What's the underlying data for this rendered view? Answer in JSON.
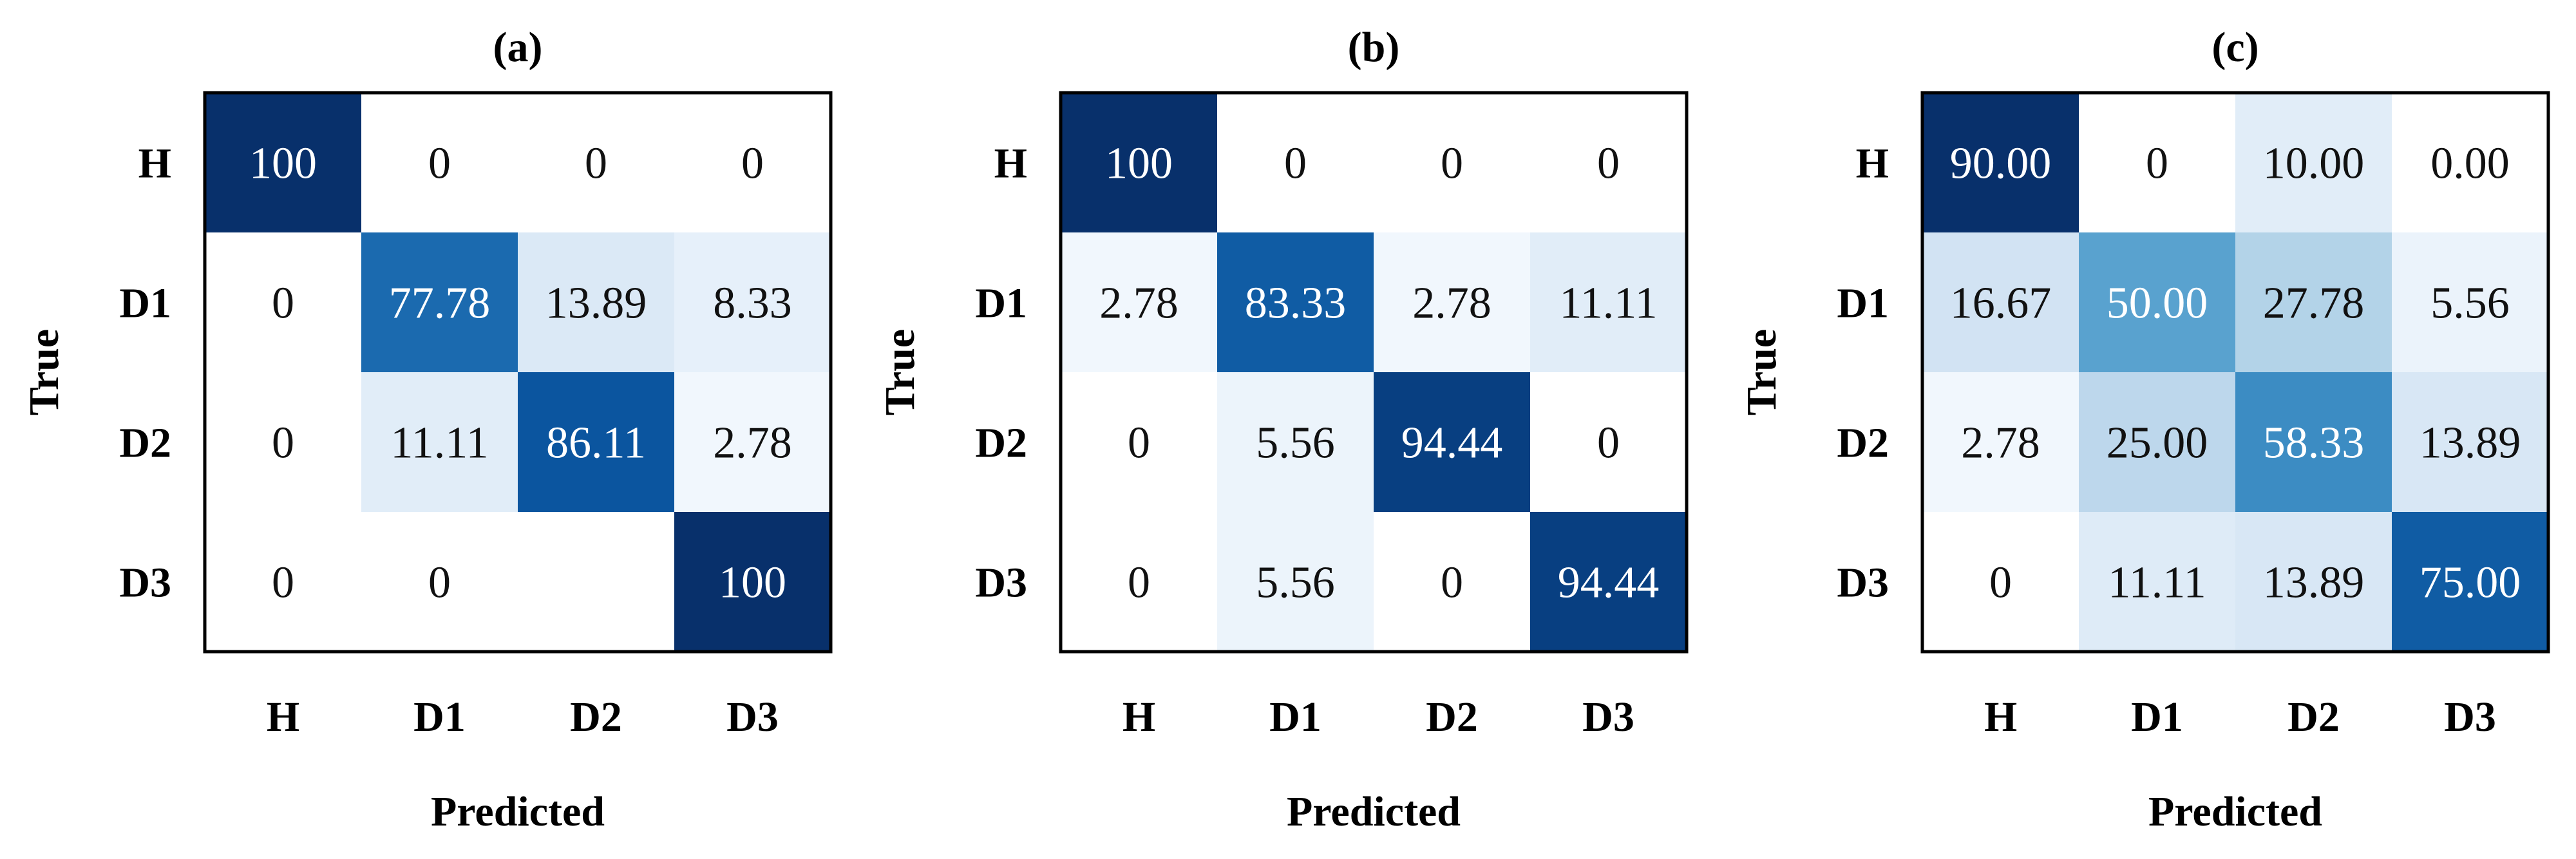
{
  "colors": {
    "low": "#f7fbff",
    "high": "#08306b",
    "frame": "#000000"
  },
  "chart_data": [
    {
      "type": "heatmap",
      "title": "(a)",
      "xlabel": "Predicted",
      "ylabel": "True",
      "x_categories": [
        "H",
        "D1",
        "D2",
        "D3"
      ],
      "y_categories": [
        "H",
        "D1",
        "D2",
        "D3"
      ],
      "values": [
        [
          100,
          0,
          0,
          0
        ],
        [
          0,
          77.78,
          13.89,
          8.33
        ],
        [
          0,
          11.11,
          86.11,
          2.78
        ],
        [
          0,
          0,
          0,
          100
        ]
      ],
      "labels": [
        [
          "100",
          "0",
          "0",
          "0"
        ],
        [
          "0",
          "77.78",
          "13.89",
          "8.33"
        ],
        [
          "0",
          "11.11",
          "86.11",
          "2.78"
        ],
        [
          "0",
          "0",
          "",
          "100"
        ]
      ],
      "vmax": 100
    },
    {
      "type": "heatmap",
      "title": "(b)",
      "xlabel": "Predicted",
      "ylabel": "True",
      "x_categories": [
        "H",
        "D1",
        "D2",
        "D3"
      ],
      "y_categories": [
        "H",
        "D1",
        "D2",
        "D3"
      ],
      "values": [
        [
          100,
          0,
          0,
          0
        ],
        [
          2.78,
          83.33,
          2.78,
          11.11
        ],
        [
          0,
          5.56,
          94.44,
          0
        ],
        [
          0,
          5.56,
          0,
          94.44
        ]
      ],
      "labels": [
        [
          "100",
          "0",
          "0",
          "0"
        ],
        [
          "2.78",
          "83.33",
          "2.78",
          "11.11"
        ],
        [
          "0",
          "5.56",
          "94.44",
          "0"
        ],
        [
          "0",
          "5.56",
          "0",
          "94.44"
        ]
      ],
      "vmax": 100
    },
    {
      "type": "heatmap",
      "title": "(c)",
      "xlabel": "Predicted",
      "ylabel": "True",
      "x_categories": [
        "H",
        "D1",
        "D2",
        "D3"
      ],
      "y_categories": [
        "H",
        "D1",
        "D2",
        "D3"
      ],
      "values": [
        [
          90,
          0,
          10,
          0
        ],
        [
          16.67,
          50,
          27.78,
          5.56
        ],
        [
          2.78,
          25,
          58.33,
          13.89
        ],
        [
          0,
          11.11,
          13.89,
          75
        ]
      ],
      "labels": [
        [
          "90.00",
          "0",
          "10.00",
          "0.00"
        ],
        [
          "16.67",
          "50.00",
          "27.78",
          "5.56"
        ],
        [
          "2.78",
          "25.00",
          "58.33",
          "13.89"
        ],
        [
          "0",
          "11.11",
          "13.89",
          "75.00"
        ]
      ],
      "vmax": 90
    }
  ]
}
